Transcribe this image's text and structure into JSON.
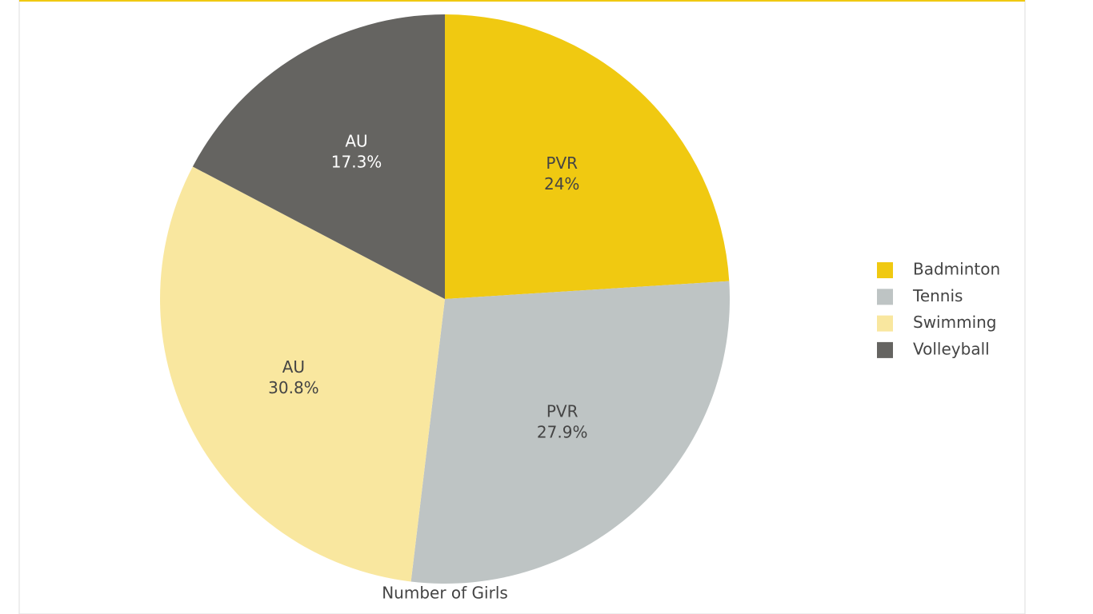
{
  "chart_data": {
    "type": "pie",
    "title": "Number of Girls",
    "categories": [
      "Badminton",
      "Tennis",
      "Swimming",
      "Volleyball"
    ],
    "labels": [
      "PVR",
      "PVR",
      "AU",
      "AU"
    ],
    "values": [
      24,
      27.9,
      30.8,
      17.3
    ],
    "value_labels": [
      "24%",
      "27.9%",
      "30.8%",
      "17.3%"
    ],
    "colors": [
      "#f0c911",
      "#bec4c4",
      "#f9e79f",
      "#656461"
    ],
    "legend": "right"
  }
}
